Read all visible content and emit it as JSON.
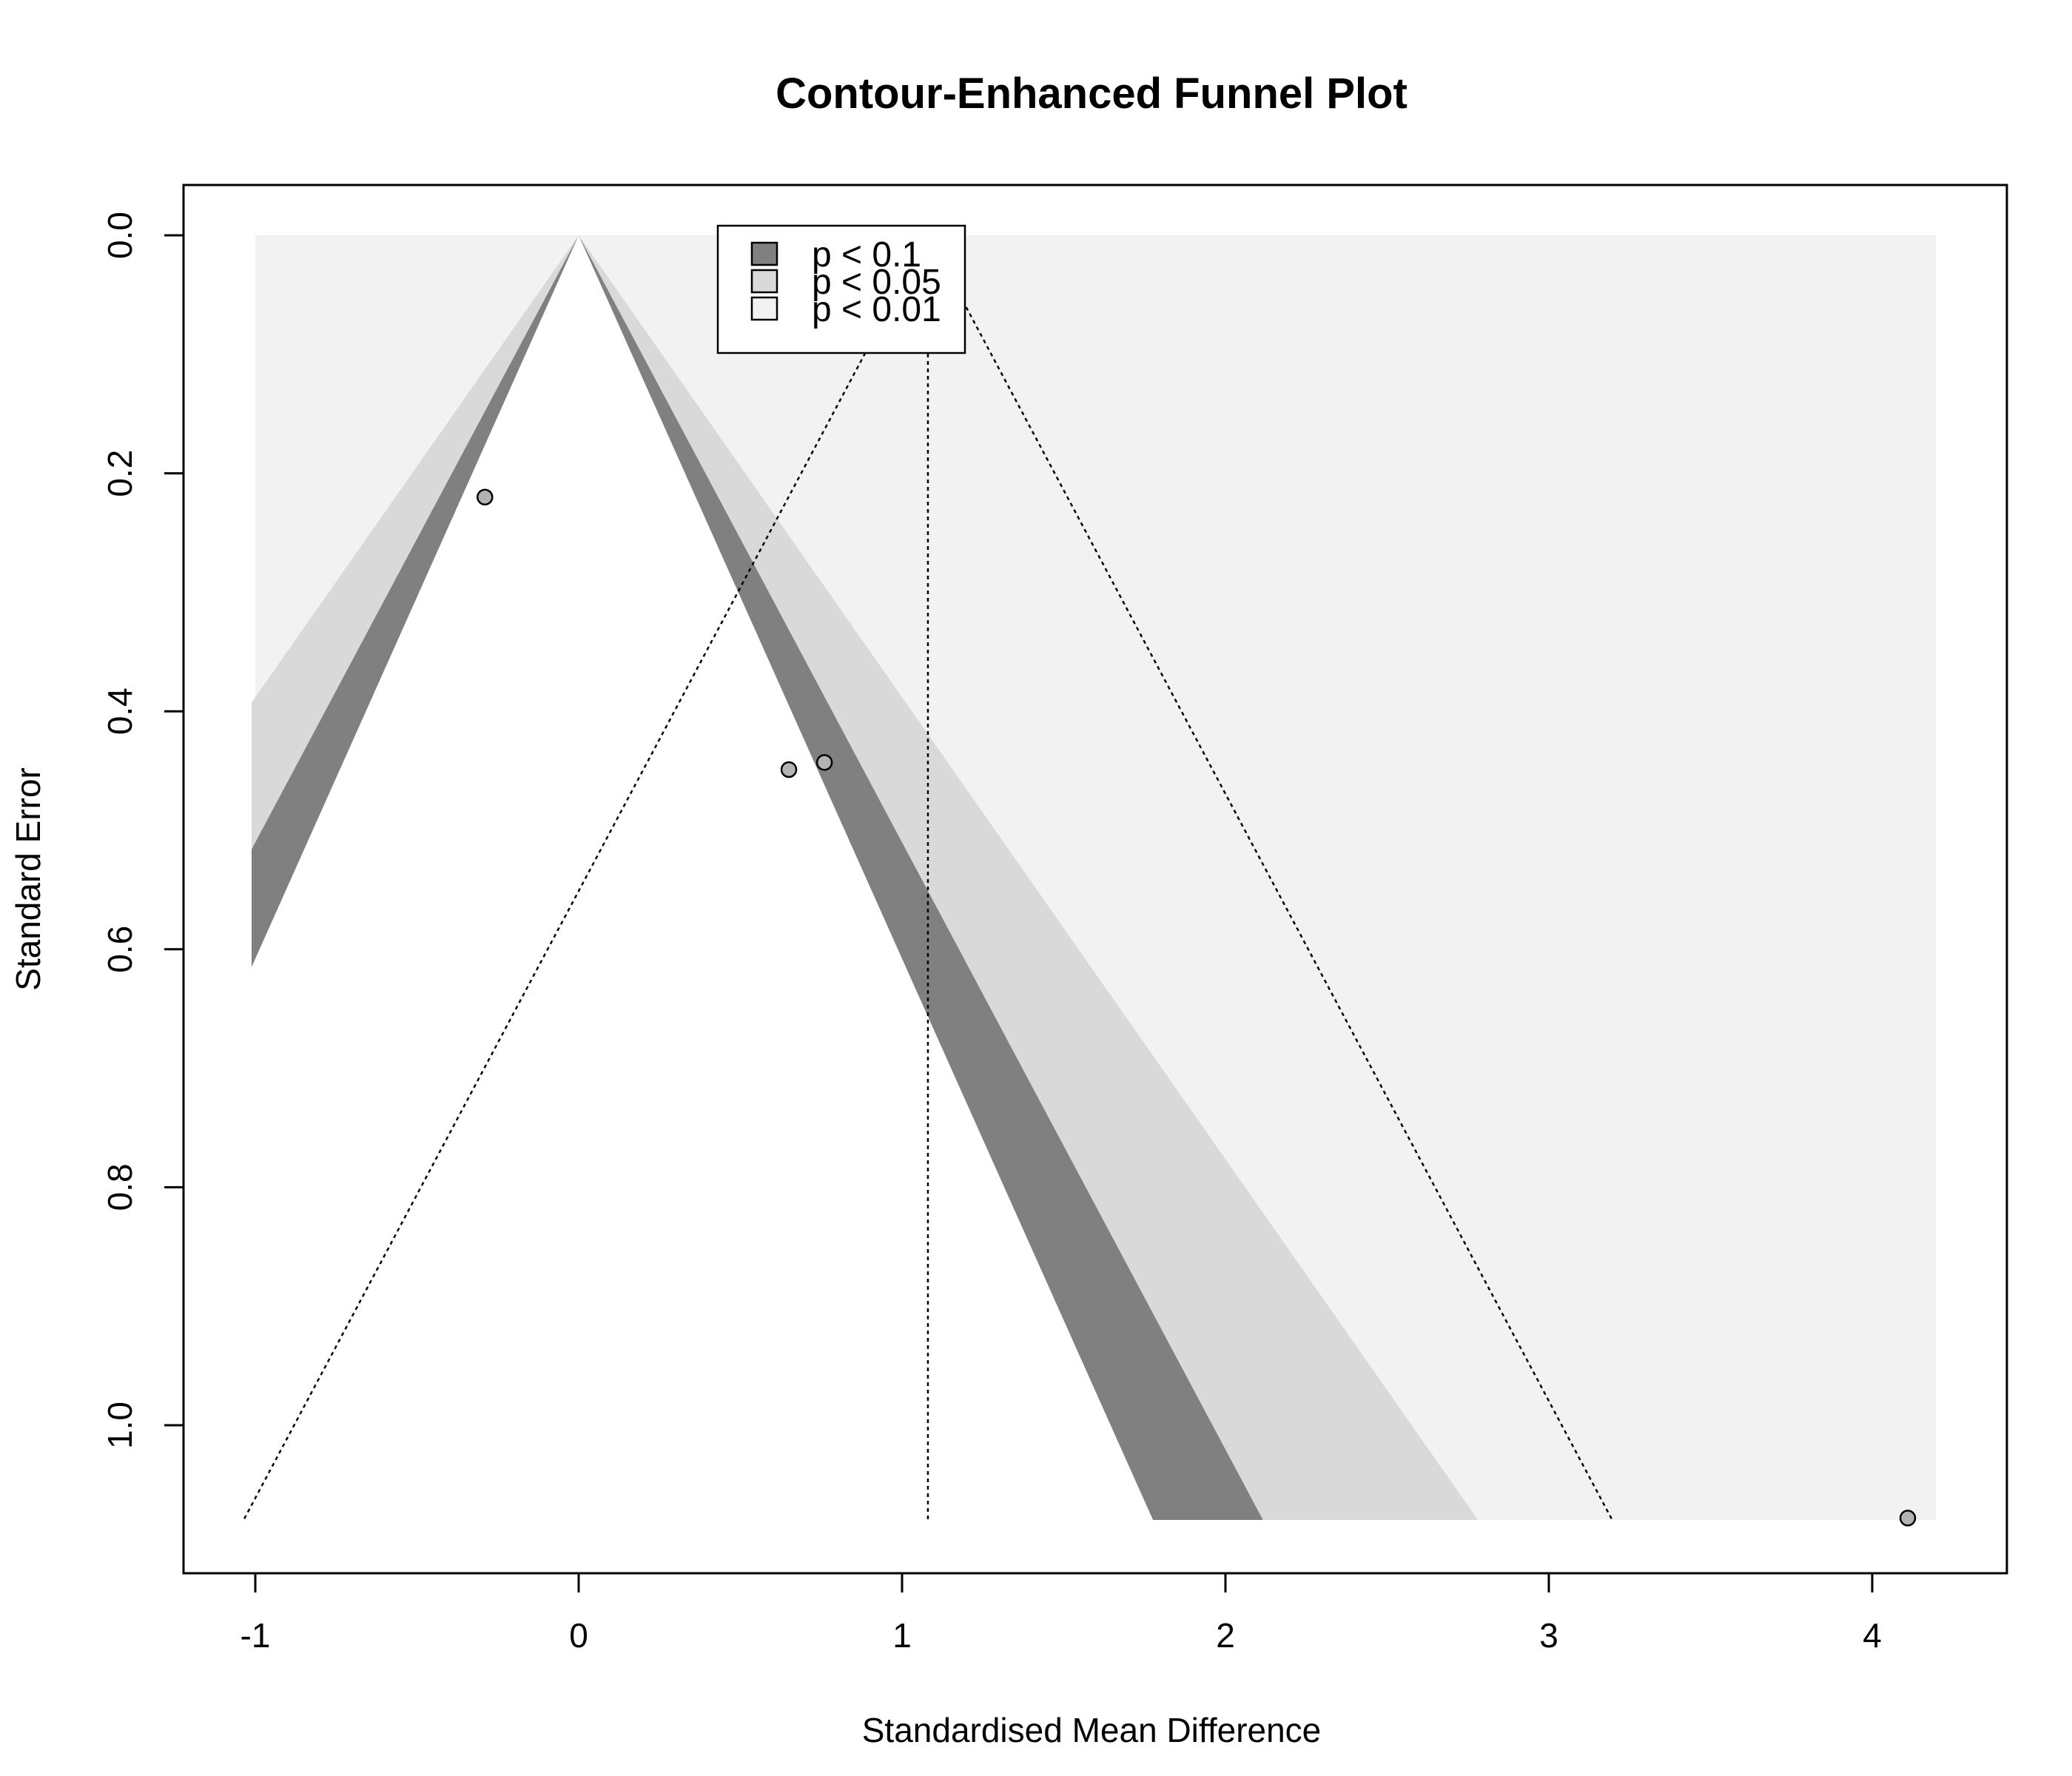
{
  "chart_data": {
    "type": "scatter",
    "title": "Contour-Enhanced Funnel Plot",
    "xlabel": "Standardised Mean Difference",
    "ylabel": "Standard Error",
    "xlim": [
      -1.2,
      4.2
    ],
    "ylim": [
      1.08,
      0.0
    ],
    "y_reversed": true,
    "x_ticks": [
      -1,
      0,
      1,
      2,
      3,
      4
    ],
    "x_tick_labels": [
      "-1",
      "0",
      "1",
      "2",
      "3",
      "4"
    ],
    "y_ticks": [
      0.0,
      0.2,
      0.4,
      0.6,
      0.8,
      1.0
    ],
    "y_tick_labels": [
      "0.0",
      "0.2",
      "0.4",
      "0.6",
      "0.8",
      "1.0"
    ],
    "grid": false,
    "legend_position": "top-center",
    "contour_regions": [
      {
        "label": "p < 0.1",
        "z_low": 1.645,
        "z_high": 1.96,
        "color": "#808080"
      },
      {
        "label": "p < 0.05",
        "z_low": 1.96,
        "z_high": 2.576,
        "color": "#d9d9d9"
      },
      {
        "label": "p < 0.01",
        "z_low": 2.576,
        "z_high": null,
        "color": "#f2f2f2"
      }
    ],
    "legend_entries": [
      {
        "label": "p < 0.1",
        "color": "#808080"
      },
      {
        "label": "p < 0.05",
        "color": "#d9d9d9"
      },
      {
        "label": "p < 0.01",
        "color": "#f2f2f2"
      }
    ],
    "pooled_estimate": 1.08,
    "points": [
      {
        "x": -0.29,
        "y": 0.22
      },
      {
        "x": 0.65,
        "y": 0.449
      },
      {
        "x": 0.76,
        "y": 0.443
      },
      {
        "x": 4.11,
        "y": 1.078
      }
    ],
    "point_color": "#b3b3b3",
    "colors": {
      "plot_background": "#ffffff",
      "axis": "#000000"
    }
  }
}
